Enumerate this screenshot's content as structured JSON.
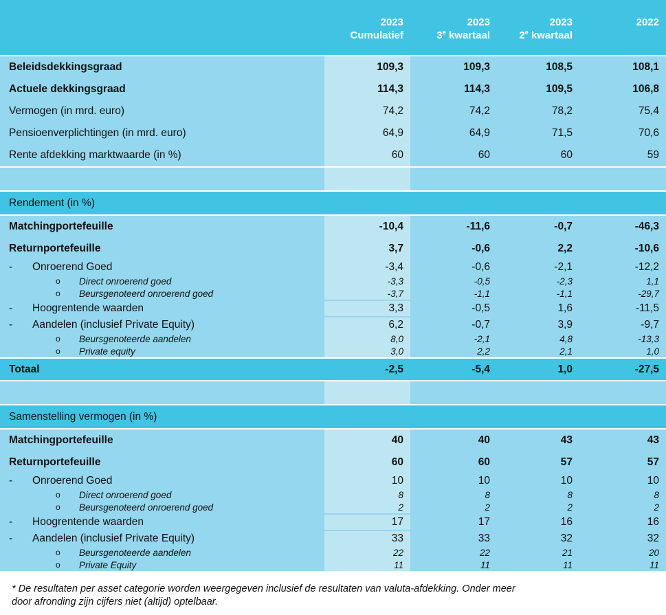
{
  "header": {
    "columns": [
      {
        "year": "2023",
        "num": "",
        "sup": "",
        "rest": "Cumulatief"
      },
      {
        "year": "2023",
        "num": "3",
        "sup": "e",
        "rest": " kwartaal"
      },
      {
        "year": "2023",
        "num": "2",
        "sup": "e",
        "rest": " kwartaal"
      },
      {
        "year": "2022",
        "num": "",
        "sup": "",
        "rest": ""
      }
    ]
  },
  "sections": [
    {
      "title": "",
      "rows": [
        {
          "kind": "bold",
          "label": "Beleidsdekkingsgraad",
          "values": [
            "109,3",
            "109,3",
            "108,5",
            "108,1"
          ]
        },
        {
          "kind": "bold",
          "label": "Actuele dekkingsgraad",
          "values": [
            "114,3",
            "114,3",
            "109,5",
            "106,8"
          ]
        },
        {
          "kind": "plain",
          "label": "Vermogen (in mrd. euro)",
          "values": [
            "74,2",
            "74,2",
            "78,2",
            "75,4"
          ]
        },
        {
          "kind": "plain",
          "label": "Pensioenverplichtingen (in mrd. euro)",
          "values": [
            "64,9",
            "64,9",
            "71,5",
            "70,6"
          ]
        },
        {
          "kind": "plain",
          "label": "Rente afdekking marktwaarde (in %)",
          "values": [
            "60",
            "60",
            "60",
            "59"
          ]
        }
      ]
    },
    {
      "title": "Rendement (in %)",
      "rows": [
        {
          "kind": "bold",
          "label": "Matchingportefeuille",
          "values": [
            "-10,4",
            "-11,6",
            "-0,7",
            "-46,3"
          ]
        },
        {
          "kind": "bold",
          "label": "Returnportefeuille",
          "values": [
            "3,7",
            "-0,6",
            "2,2",
            "-10,6"
          ]
        },
        {
          "kind": "l1",
          "marker": "-",
          "label": "Onroerend Goed",
          "values": [
            "-3,4",
            "-0,6",
            "-2,1",
            "-12,2"
          ]
        },
        {
          "kind": "sub",
          "marker": "o",
          "label": "Direct onroerend goed",
          "values": [
            "-3,3",
            "-0,5",
            "-2,3",
            "1,1"
          ]
        },
        {
          "kind": "sub",
          "marker": "o",
          "label": "Beursgenoteerd onroerend goed",
          "values": [
            "-3,7",
            "-1,1",
            "-1,1",
            "-29,7"
          ]
        },
        {
          "kind": "l1p",
          "marker": "-",
          "label": "Hoogrentende waarden",
          "values": [
            "3,3",
            "-0,5",
            "1,6",
            "-11,5"
          ]
        },
        {
          "kind": "l1p",
          "marker": "-",
          "label": "Aandelen (inclusief Private Equity)",
          "values": [
            "6,2",
            "-0,7",
            "3,9",
            "-9,7"
          ]
        },
        {
          "kind": "sub",
          "marker": "o",
          "label": "Beursgenoteerde aandelen",
          "values": [
            "8,0",
            "-2,1",
            "4,8",
            "-13,3"
          ]
        },
        {
          "kind": "sub",
          "marker": "o",
          "label": "Private equity",
          "values": [
            "3,0",
            "2,2",
            "2,1",
            "1,0"
          ]
        },
        {
          "kind": "tot",
          "label": "Totaal",
          "values": [
            "-2,5",
            "-5,4",
            "1,0",
            "-27,5"
          ]
        }
      ]
    },
    {
      "title": "Samenstelling vermogen (in %)",
      "rows": [
        {
          "kind": "bold",
          "label": "Matchingportefeuille",
          "values": [
            "40",
            "40",
            "43",
            "43"
          ]
        },
        {
          "kind": "bold",
          "label": "Returnportefeuille",
          "values": [
            "60",
            "60",
            "57",
            "57"
          ]
        },
        {
          "kind": "l1",
          "marker": "-",
          "label": "Onroerend Goed",
          "values": [
            "10",
            "10",
            "10",
            "10"
          ]
        },
        {
          "kind": "sub",
          "marker": "o",
          "label": "Direct onroerend goed",
          "values": [
            "8",
            "8",
            "8",
            "8"
          ]
        },
        {
          "kind": "sub",
          "marker": "o",
          "label": "Beursgenoteerd onroerend goed",
          "values": [
            "2",
            "2",
            "2",
            "2"
          ]
        },
        {
          "kind": "l1p",
          "marker": "-",
          "label": "Hoogrentende waarden",
          "values": [
            "17",
            "17",
            "16",
            "16"
          ]
        },
        {
          "kind": "l1p",
          "marker": "-",
          "label": "Aandelen (inclusief Private Equity)",
          "values": [
            "33",
            "33",
            "32",
            "32"
          ]
        },
        {
          "kind": "sub",
          "marker": "o",
          "label": "Beursgenoteerde aandelen",
          "values": [
            "22",
            "22",
            "21",
            "20"
          ]
        },
        {
          "kind": "sub",
          "marker": "o",
          "label": "Private Equity",
          "values": [
            "11",
            "11",
            "11",
            "11"
          ]
        }
      ]
    }
  ],
  "footnote": {
    "line1": "* De resultaten per asset categorie worden weergegeven inclusief de resultaten van valuta-afdekking. Onder meer",
    "line2": "door afronding zijn cijfers niet (altijd) optelbaar."
  }
}
